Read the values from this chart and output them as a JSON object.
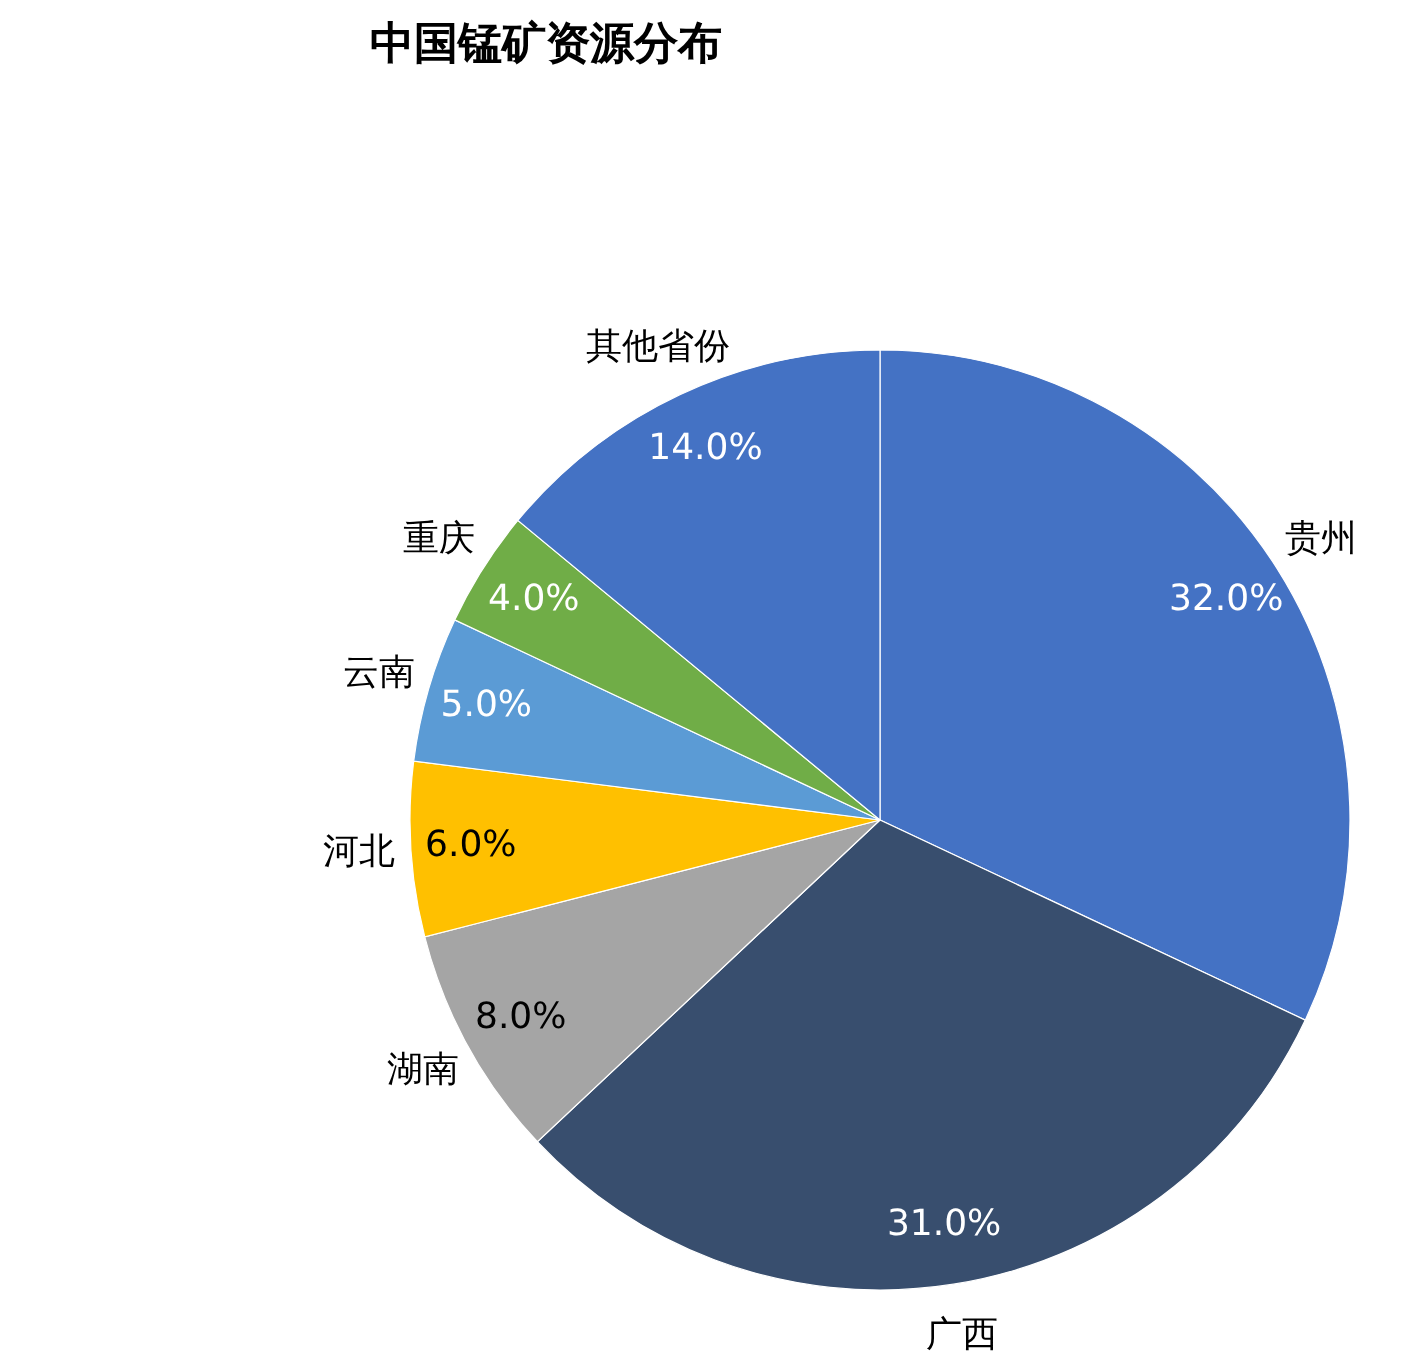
{
  "chart_data": {
    "type": "pie",
    "title": "中国锰矿资源分布",
    "categories": [
      "贵州",
      "广西",
      "湖南",
      "河北",
      "云南",
      "重庆",
      "其他省份"
    ],
    "values": [
      32.0,
      31.0,
      8.0,
      6.0,
      5.0,
      4.0,
      14.0
    ],
    "value_labels": [
      "32.0%",
      "31.0%",
      "8.0%",
      "6.0%",
      "5.0%",
      "4.0%",
      "14.0%"
    ],
    "colors": [
      "#4472c4",
      "#384e6e",
      "#a5a5a5",
      "#ffc000",
      "#5b9bd5",
      "#70ad47",
      "#4472c4"
    ],
    "legend": false
  }
}
